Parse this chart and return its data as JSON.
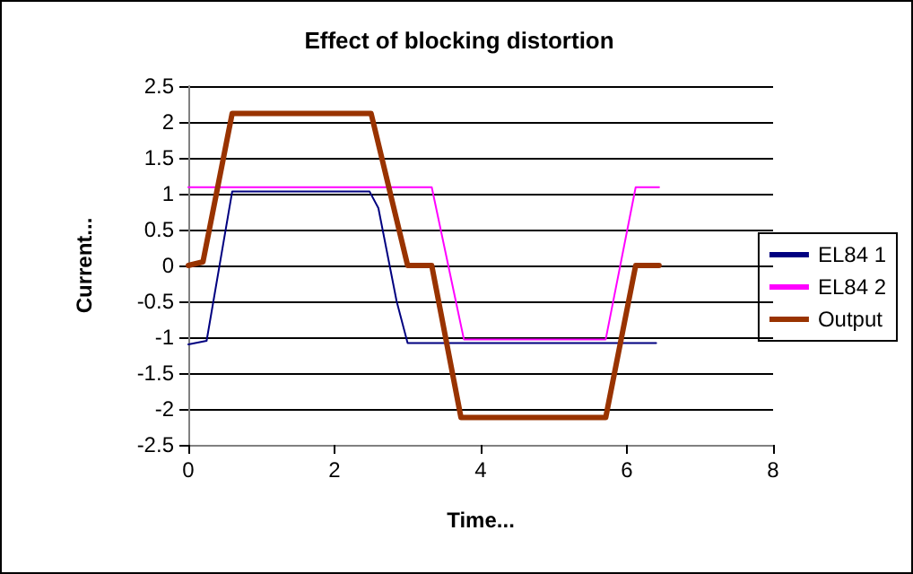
{
  "chart_data": {
    "type": "line",
    "title": "Effect of blocking distortion",
    "xlabel": "Time...",
    "ylabel": "Current...",
    "xlim": [
      0,
      8
    ],
    "xticks": [
      0,
      2,
      4,
      6,
      8
    ],
    "ylim": [
      -2.5,
      2.5
    ],
    "yticks": [
      -2.5,
      -2,
      -1.5,
      -1,
      -0.5,
      0,
      0.5,
      1,
      1.5,
      2,
      2.5
    ],
    "grid": "y",
    "legend": "right",
    "marker": "none",
    "line_style": "solid",
    "series": [
      {
        "name": "EL84 1",
        "color": "#000080",
        "x": [
          0,
          0.25,
          0.6,
          2.48,
          2.6,
          2.85,
          3.0,
          6.4
        ],
        "values": [
          -1.1,
          -1.05,
          1.03,
          1.03,
          0.8,
          -0.5,
          -1.08,
          -1.08
        ]
      },
      {
        "name": "EL84 2",
        "color": "#ff00ff",
        "x": [
          0,
          3.33,
          3.77,
          5.71,
          6.12,
          6.44
        ],
        "values": [
          1.09,
          1.09,
          -1.03,
          -1.03,
          1.09,
          1.09
        ]
      },
      {
        "name": "Output",
        "color": "#993300",
        "x": [
          0,
          0.2,
          0.6,
          2.5,
          3.0,
          3.33,
          3.73,
          5.71,
          6.12,
          6.44
        ],
        "values": [
          0,
          0.05,
          2.12,
          2.12,
          0,
          0,
          -2.12,
          -2.12,
          0,
          0
        ]
      }
    ]
  }
}
